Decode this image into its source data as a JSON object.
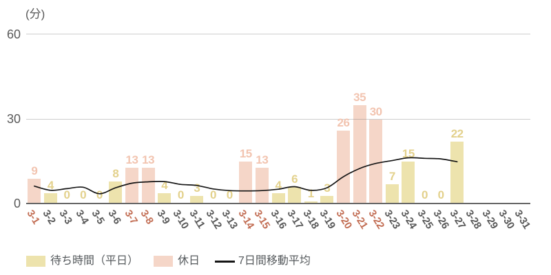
{
  "chart": {
    "unit_label": "(分)",
    "ytick_labels": [
      "60",
      "30",
      "0"
    ],
    "legend": [
      {
        "label": "待ち時間（平日）",
        "type": "swatch",
        "color": "#EDE3AD"
      },
      {
        "label": "休日",
        "type": "swatch",
        "color": "#F5D6C8"
      },
      {
        "label": "7日間移動平均",
        "type": "line",
        "color": "#151515"
      }
    ]
  },
  "chart_data": {
    "type": "bar",
    "title": "",
    "ylabel": "(分)",
    "ylim": [
      0,
      60
    ],
    "yticks": [
      0,
      30,
      60
    ],
    "grid": "horizontal",
    "legend_position": "bottom-left",
    "categories": [
      "3-1",
      "3-2",
      "3-3",
      "3-4",
      "3-5",
      "3-6",
      "3-7",
      "3-8",
      "3-9",
      "3-10",
      "3-11",
      "3-12",
      "3-13",
      "3-14",
      "3-15",
      "3-16",
      "3-17",
      "3-18",
      "3-19",
      "3-20",
      "3-21",
      "3-22",
      "3-23",
      "3-24",
      "3-25",
      "3-26",
      "3-27",
      "3-28",
      "3-29",
      "3-30",
      "3-31"
    ],
    "series": [
      {
        "name": "待ち時間（平日）",
        "type": "bar",
        "color": "#EDE3AD",
        "value_label_color": "#E3D18C",
        "values": [
          null,
          4,
          0,
          0,
          0,
          8,
          null,
          null,
          4,
          0,
          3,
          0,
          0,
          null,
          null,
          4,
          6,
          1,
          3,
          null,
          null,
          null,
          7,
          15,
          0,
          0,
          22,
          null,
          null,
          null,
          null
        ]
      },
      {
        "name": "休日",
        "type": "bar",
        "color": "#F5D6C8",
        "value_label_color": "#F2C4B0",
        "values": [
          9,
          null,
          null,
          null,
          null,
          null,
          13,
          13,
          null,
          null,
          null,
          null,
          null,
          15,
          13,
          null,
          null,
          null,
          null,
          26,
          35,
          30,
          null,
          null,
          null,
          null,
          null,
          null,
          null,
          null,
          null
        ]
      },
      {
        "name": "7日間移動平均",
        "type": "line",
        "color": "#151515",
        "values": [
          6.4,
          4.9,
          5.5,
          6.0,
          3.7,
          5.8,
          7.4,
          7.9,
          8.0,
          7.0,
          6.6,
          5.4,
          4.8,
          4.7,
          4.8,
          5.3,
          6.2,
          4.9,
          5.8,
          9.7,
          12.6,
          14.4,
          15.4,
          16.4,
          16.2,
          16.0,
          15.0,
          null,
          null,
          null,
          null
        ]
      }
    ],
    "holiday_label_indices": [
      0,
      6,
      7,
      13,
      14,
      19,
      20,
      21
    ],
    "holiday_label_color": "#C26D53",
    "weekday_label_color": "#595959"
  }
}
